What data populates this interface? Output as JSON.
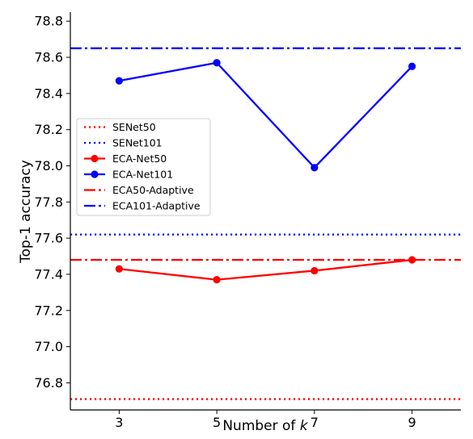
{
  "chart_data": {
    "type": "line",
    "xlabel_prefix": "Number of ",
    "xlabel_var": "k",
    "ylabel": "Top-1 accuracy",
    "x": [
      3,
      5,
      7,
      9
    ],
    "xlim": [
      2,
      10
    ],
    "ylim": [
      76.65,
      78.85
    ],
    "xticks": [
      "3",
      "5",
      "7",
      "9"
    ],
    "yticks": [
      "76.8",
      "77.0",
      "77.2",
      "77.4",
      "77.6",
      "77.8",
      "78.0",
      "78.2",
      "78.4",
      "78.6",
      "78.8"
    ],
    "grid": false,
    "legend_position": "center-left",
    "series": [
      {
        "name": "SENet50",
        "kind": "hline",
        "value": 76.71,
        "color": "#ff0000",
        "dash": "dotted"
      },
      {
        "name": "SENet101",
        "kind": "hline",
        "value": 77.62,
        "color": "#0000ff",
        "dash": "dotted"
      },
      {
        "name": "ECA-Net50",
        "kind": "line",
        "values": [
          77.43,
          77.37,
          77.42,
          77.48
        ],
        "color": "#ff0000",
        "dash": "solid"
      },
      {
        "name": "ECA-Net101",
        "kind": "line",
        "values": [
          78.47,
          78.57,
          77.99,
          78.55
        ],
        "color": "#0000ff",
        "dash": "solid"
      },
      {
        "name": "ECA50-Adaptive",
        "kind": "hline",
        "value": 77.48,
        "color": "#ff0000",
        "dash": "dashdot"
      },
      {
        "name": "ECA101-Adaptive",
        "kind": "hline",
        "value": 78.65,
        "color": "#0000ff",
        "dash": "dashdot"
      }
    ]
  }
}
